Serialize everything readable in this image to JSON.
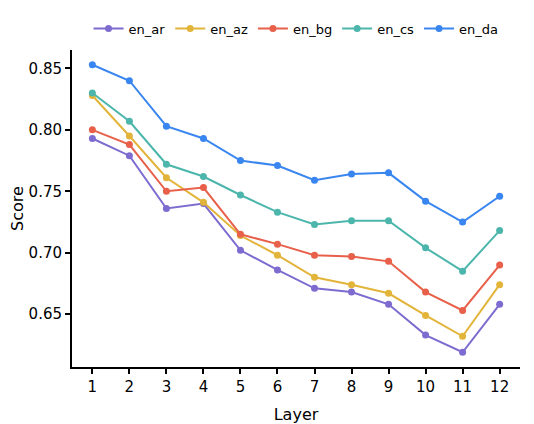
{
  "chart_data": {
    "type": "line",
    "x_label": "Layer",
    "y_label": "Score",
    "x": [
      1,
      2,
      3,
      4,
      5,
      6,
      7,
      8,
      9,
      10,
      11,
      12
    ],
    "series": [
      {
        "name": "en_ar",
        "color": "#7E6BD0",
        "values": [
          0.793,
          0.779,
          0.736,
          0.74,
          0.702,
          0.686,
          0.671,
          0.668,
          0.658,
          0.633,
          0.619,
          0.658
        ]
      },
      {
        "name": "en_az",
        "color": "#E3B43A",
        "values": [
          0.828,
          0.795,
          0.761,
          0.741,
          0.714,
          0.698,
          0.68,
          0.674,
          0.667,
          0.649,
          0.632,
          0.674
        ]
      },
      {
        "name": "en_bg",
        "color": "#E8604A",
        "values": [
          0.8,
          0.788,
          0.75,
          0.753,
          0.715,
          0.707,
          0.698,
          0.697,
          0.693,
          0.668,
          0.653,
          0.69
        ]
      },
      {
        "name": "en_cs",
        "color": "#4DB6AC",
        "values": [
          0.83,
          0.807,
          0.772,
          0.762,
          0.747,
          0.733,
          0.723,
          0.726,
          0.726,
          0.704,
          0.685,
          0.718
        ]
      },
      {
        "name": "en_da",
        "color": "#3A86F0",
        "values": [
          0.853,
          0.84,
          0.803,
          0.793,
          0.775,
          0.771,
          0.759,
          0.764,
          0.765,
          0.742,
          0.725,
          0.746
        ]
      }
    ],
    "xlim": [
      0.45,
      12.55
    ],
    "xticks": [
      1,
      2,
      3,
      4,
      5,
      6,
      7,
      8,
      9,
      10,
      11,
      12
    ],
    "ylim": [
      0.607,
      0.865
    ],
    "yticks": [
      0.65,
      {
        "value": 0.7,
        "label": "0.70"
      },
      0.75,
      {
        "value": 0.8,
        "label": "0.80"
      },
      0.85
    ],
    "grid": false,
    "legend": "top",
    "marker": "circle",
    "line_style": "solid"
  }
}
